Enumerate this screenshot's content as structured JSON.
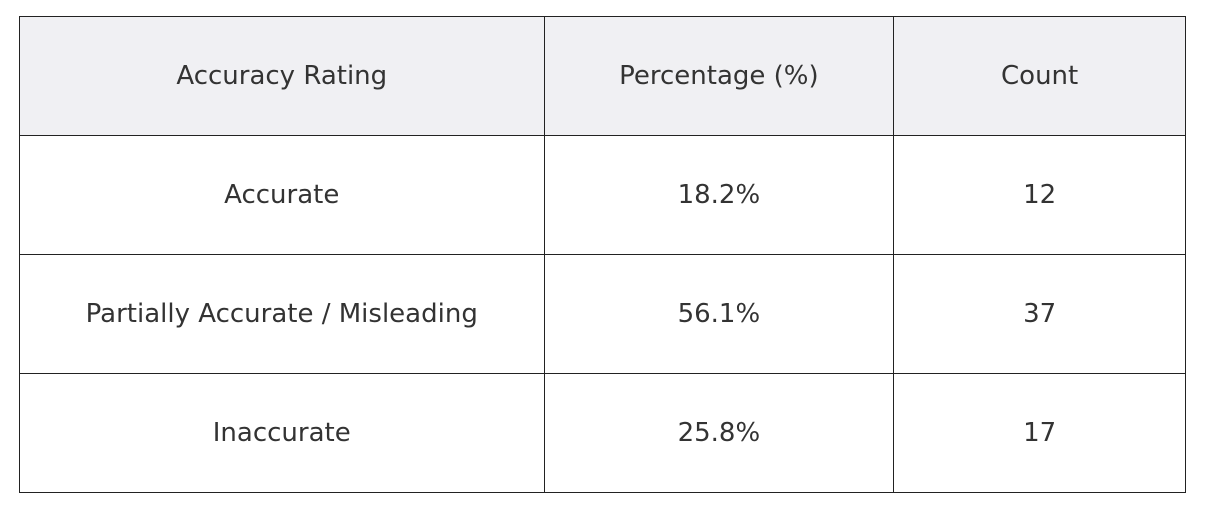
{
  "table": {
    "header": [
      "Accuracy Rating",
      "Percentage (%)",
      "Count"
    ],
    "rows": [
      [
        "Accurate",
        "18.2%",
        "12"
      ],
      [
        "Partially Accurate / Misleading",
        "56.1%",
        "37"
      ],
      [
        "Inaccurate",
        "25.8%",
        "17"
      ]
    ]
  }
}
